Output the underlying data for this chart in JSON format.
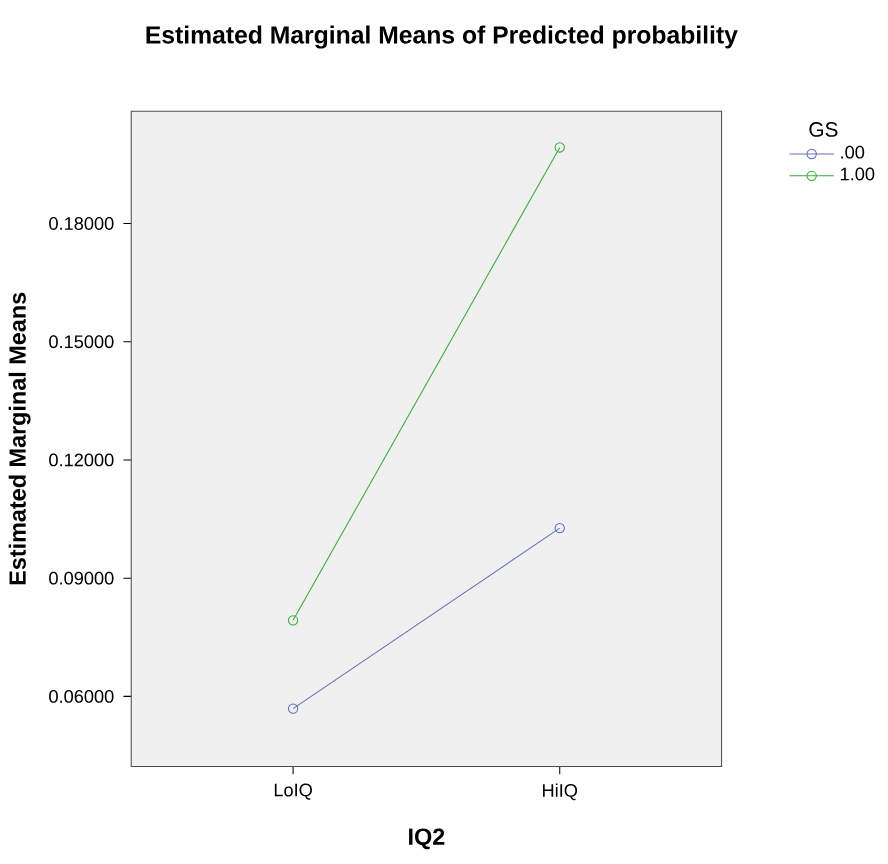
{
  "chart_data": {
    "type": "line",
    "title": "Estimated Marginal Means of Predicted probability",
    "xlabel": "IQ2",
    "ylabel": "Estimated Marginal Means",
    "legend_title": "GS",
    "categories": [
      "LoIQ",
      "HiIQ"
    ],
    "series": [
      {
        "name": ".00",
        "color": "#6170b8",
        "values": [
          0.0569,
          0.1027
        ]
      },
      {
        "name": "1.00",
        "color": "#3aab3a",
        "values": [
          0.0793,
          0.1993
        ]
      }
    ],
    "ylim": [
      0.0422,
      0.2085
    ],
    "yticks": [
      {
        "value": 0.06,
        "label": "0.06000"
      },
      {
        "value": 0.09,
        "label": "0.09000"
      },
      {
        "value": 0.12,
        "label": "0.12000"
      },
      {
        "value": 0.15,
        "label": "0.15000"
      },
      {
        "value": 0.18,
        "label": "0.18000"
      }
    ],
    "marker": "circle",
    "line_style": "solid",
    "grid": false,
    "legend": "top right"
  }
}
